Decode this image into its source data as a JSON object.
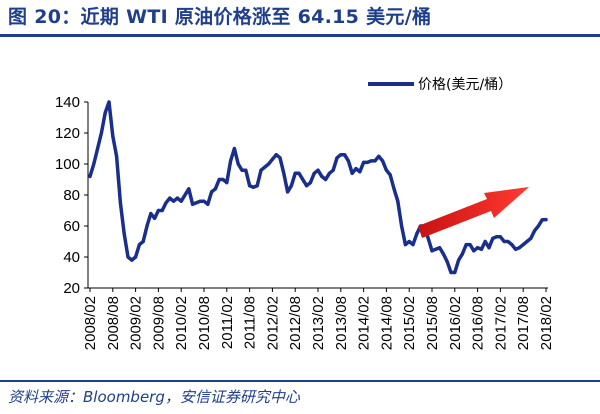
{
  "header": {
    "title": "图 20：近期 WTI 原油价格涨至 64.15 美元/桶"
  },
  "footer": {
    "source": "资料来源：Bloomberg，安信证券研究中心"
  },
  "colors": {
    "series": "#1a2e8c",
    "arrow": "#e8201c",
    "header": "#1f3f8a"
  },
  "chart_data": {
    "type": "line",
    "title": "",
    "xlabel": "",
    "ylabel": "",
    "ylim": [
      20,
      140
    ],
    "y_ticks": [
      20,
      40,
      60,
      80,
      100,
      120,
      140
    ],
    "x_ticks": [
      "2008/02",
      "2008/08",
      "2009/02",
      "2009/08",
      "2010/02",
      "2010/08",
      "2011/02",
      "2011/08",
      "2012/02",
      "2012/08",
      "2013/02",
      "2013/08",
      "2014/02",
      "2014/08",
      "2015/02",
      "2015/08",
      "2016/02",
      "2016/08",
      "2017/02",
      "2017/08",
      "2018/02"
    ],
    "grid": false,
    "legend": {
      "position": "top-right",
      "entries": [
        "价格(美元/桶）"
      ]
    },
    "annotation": "red upward arrow indicating rising price",
    "series": [
      {
        "name": "价格(美元/桶）",
        "x": [
          "2008/02",
          "2008/03",
          "2008/04",
          "2008/05",
          "2008/06",
          "2008/07",
          "2008/08",
          "2008/09",
          "2008/10",
          "2008/11",
          "2008/12",
          "2009/01",
          "2009/02",
          "2009/03",
          "2009/04",
          "2009/05",
          "2009/06",
          "2009/07",
          "2009/08",
          "2009/09",
          "2009/10",
          "2009/11",
          "2009/12",
          "2010/01",
          "2010/02",
          "2010/03",
          "2010/04",
          "2010/05",
          "2010/06",
          "2010/07",
          "2010/08",
          "2010/09",
          "2010/10",
          "2010/11",
          "2010/12",
          "2011/01",
          "2011/02",
          "2011/03",
          "2011/04",
          "2011/05",
          "2011/06",
          "2011/07",
          "2011/08",
          "2011/09",
          "2011/10",
          "2011/11",
          "2011/12",
          "2012/01",
          "2012/02",
          "2012/03",
          "2012/04",
          "2012/05",
          "2012/06",
          "2012/07",
          "2012/08",
          "2012/09",
          "2012/10",
          "2012/11",
          "2012/12",
          "2013/01",
          "2013/02",
          "2013/03",
          "2013/04",
          "2013/05",
          "2013/06",
          "2013/07",
          "2013/08",
          "2013/09",
          "2013/10",
          "2013/11",
          "2013/12",
          "2014/01",
          "2014/02",
          "2014/03",
          "2014/04",
          "2014/05",
          "2014/06",
          "2014/07",
          "2014/08",
          "2014/09",
          "2014/10",
          "2014/11",
          "2014/12",
          "2015/01",
          "2015/02",
          "2015/03",
          "2015/04",
          "2015/05",
          "2015/06",
          "2015/07",
          "2015/08",
          "2015/09",
          "2015/10",
          "2015/11",
          "2015/12",
          "2016/01",
          "2016/02",
          "2016/03",
          "2016/04",
          "2016/05",
          "2016/06",
          "2016/07",
          "2016/08",
          "2016/09",
          "2016/10",
          "2016/11",
          "2016/12",
          "2017/01",
          "2017/02",
          "2017/03",
          "2017/04",
          "2017/05",
          "2017/06",
          "2017/07",
          "2017/08",
          "2017/09",
          "2017/10",
          "2017/11",
          "2017/12",
          "2018/01",
          "2018/02"
        ],
        "values": [
          92,
          100,
          110,
          120,
          133,
          140,
          118,
          105,
          75,
          55,
          40,
          38,
          40,
          48,
          50,
          60,
          68,
          65,
          70,
          70,
          75,
          78,
          76,
          78,
          76,
          80,
          84,
          74,
          75,
          76,
          76,
          74,
          82,
          84,
          90,
          90,
          88,
          102,
          110,
          100,
          96,
          96,
          86,
          85,
          86,
          96,
          98,
          100,
          103,
          106,
          104,
          94,
          82,
          86,
          94,
          94,
          90,
          86,
          88,
          94,
          96,
          92,
          90,
          94,
          96,
          104,
          106,
          106,
          102,
          94,
          97,
          95,
          101,
          101,
          102,
          102,
          105,
          102,
          96,
          93,
          84,
          76,
          60,
          48,
          50,
          48,
          55,
          60,
          60,
          52,
          44,
          45,
          46,
          42,
          37,
          30,
          30,
          38,
          42,
          48,
          48,
          44,
          46,
          45,
          50,
          46,
          52,
          53,
          53,
          50,
          50,
          48,
          45,
          46,
          48,
          50,
          52,
          57,
          60,
          64,
          64.15
        ]
      }
    ]
  }
}
